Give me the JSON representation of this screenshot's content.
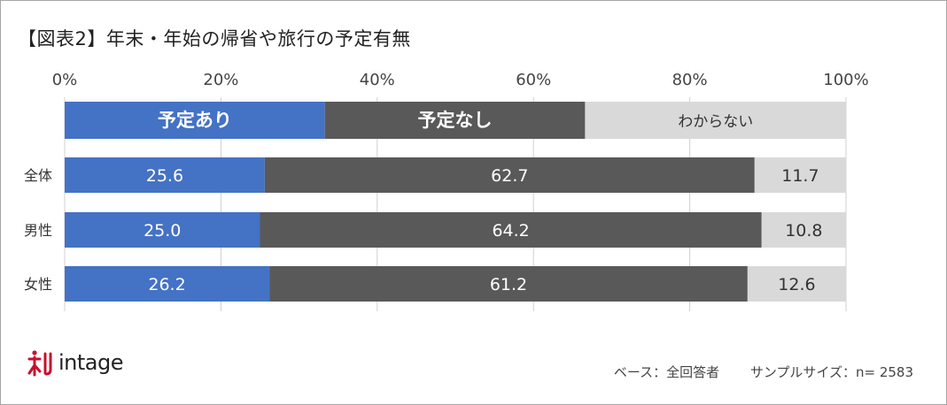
{
  "title": "【図表2】年末・年始の帰省や旅行の予定有無",
  "footer": {
    "base_label": "ベース：全回答者",
    "sample_label": "サンプルサイズ：n= 2583"
  },
  "brand": {
    "name": "intage",
    "color": "#c8102e"
  },
  "colors": {
    "yes": "#4472c4",
    "no": "#595959",
    "unknown": "#d9d9d9",
    "grid": "#d0d0d0"
  },
  "chart_data": {
    "type": "bar",
    "orientation": "horizontal-stacked-100",
    "title": "【図表2】年末・年始の帰省や旅行の予定有無",
    "xlim": [
      0,
      100
    ],
    "xticks": [
      "0%",
      "20%",
      "40%",
      "60%",
      "80%",
      "100%"
    ],
    "legend": {
      "placement": "top",
      "entries": [
        "予定あり",
        "予定なし",
        "わからない"
      ],
      "values": [
        33.3,
        33.3,
        33.4
      ]
    },
    "categories": [
      "全体",
      "男性",
      "女性"
    ],
    "series": [
      {
        "name": "予定あり",
        "values": [
          25.6,
          25.0,
          26.2
        ]
      },
      {
        "name": "予定なし",
        "values": [
          62.7,
          64.2,
          61.2
        ]
      },
      {
        "name": "わからない",
        "values": [
          11.7,
          10.8,
          12.6
        ]
      }
    ]
  }
}
